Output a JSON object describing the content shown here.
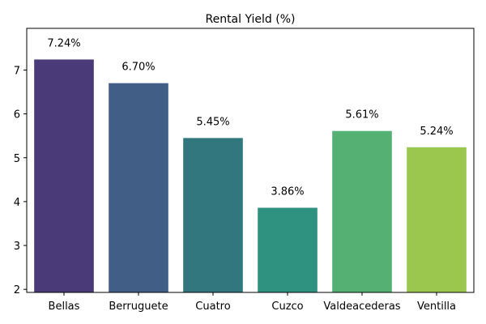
{
  "chart_data": {
    "type": "bar",
    "title": "Rental Yield (%)",
    "xlabel": "",
    "ylabel": "",
    "categories": [
      "Bellas",
      "Berruguete",
      "Cuatro",
      "Cuzco",
      "Valdeacederas",
      "Ventilla"
    ],
    "values": [
      7.24,
      6.7,
      5.45,
      3.86,
      5.61,
      5.24
    ],
    "data_labels": [
      "7.24%",
      "6.70%",
      "5.45%",
      "3.86%",
      "5.61%",
      "5.24%"
    ],
    "colors": [
      "#4a3a78",
      "#405e86",
      "#33777e",
      "#2f917f",
      "#55b074",
      "#9bc74f"
    ],
    "ylim": [
      1.93,
      7.95
    ],
    "yticks": [
      2,
      3,
      4,
      5,
      6,
      7
    ],
    "grid": false,
    "legend": "none"
  }
}
